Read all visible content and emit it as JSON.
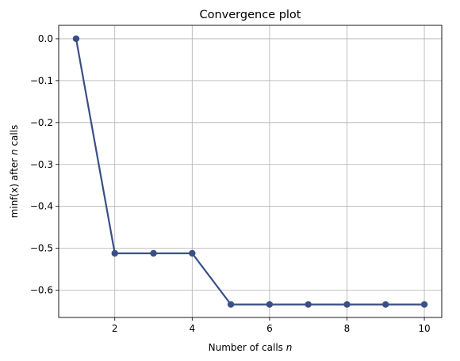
{
  "chart_data": {
    "type": "line",
    "title": "Convergence plot",
    "xlabel_prefix": "Number of calls ",
    "xlabel_var": "n",
    "ylabel_pre": "min",
    "ylabel_arg": "f(x)",
    "ylabel_mid": " after ",
    "ylabel_var": "n",
    "ylabel_post": " calls",
    "x": [
      1,
      2,
      3,
      4,
      5,
      6,
      7,
      8,
      9,
      10
    ],
    "y": [
      0.0,
      -0.512,
      -0.512,
      -0.512,
      -0.634,
      -0.634,
      -0.634,
      -0.634,
      -0.634,
      -0.634
    ],
    "xlim": [
      0.55,
      10.45
    ],
    "ylim": [
      -0.665,
      0.032
    ],
    "xticks": [
      2,
      4,
      6,
      8,
      10
    ],
    "xtick_labels": [
      "2",
      "4",
      "6",
      "8",
      "10"
    ],
    "yticks": [
      0.0,
      -0.1,
      -0.2,
      -0.3,
      -0.4,
      -0.5,
      -0.6
    ],
    "ytick_labels": [
      "0.0",
      "−0.1",
      "−0.2",
      "−0.3",
      "−0.4",
      "−0.5",
      "−0.6"
    ],
    "grid": true,
    "line_color": "#3b4f86",
    "grid_color": "#b0b0b0"
  }
}
